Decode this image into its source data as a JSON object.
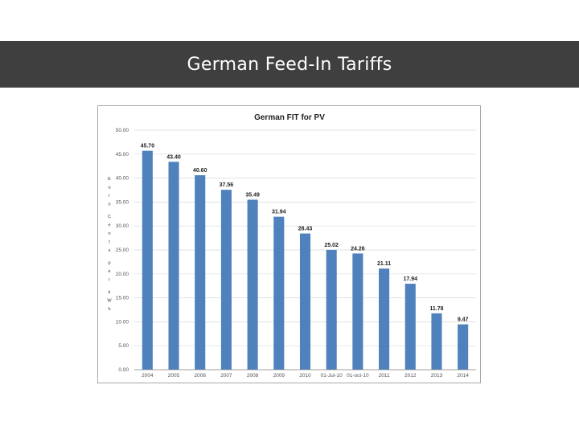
{
  "slide": {
    "title": "German Feed-In Tariffs"
  },
  "colors": {
    "banner": "#3f3f3f",
    "bar": "#4f81bd",
    "grid": "#d9d9d9"
  },
  "chart_data": {
    "type": "bar",
    "title": "German FIT for PV",
    "xlabel": "",
    "ylabel": "Euro Cents per kWh",
    "categories": [
      "2004",
      "2005",
      "2006",
      "2007",
      "2008",
      "2009",
      "2010",
      "01-Jul-10",
      "01-oct-10",
      "2011",
      "2012",
      "2013",
      "2014"
    ],
    "values": [
      45.7,
      43.4,
      40.6,
      37.56,
      35.49,
      31.94,
      28.43,
      25.02,
      24.26,
      21.11,
      17.94,
      11.78,
      9.47
    ],
    "data_labels": [
      "45.70",
      "43.40",
      "40.60",
      "37.56",
      "35.49",
      "31.94",
      "28.43",
      "25.02",
      "24.26",
      "21.11",
      "17.94",
      "11.78",
      "9.47"
    ],
    "yticks": [
      "0.00",
      "5.00",
      "10.00",
      "15.00",
      "20.00",
      "25.00",
      "30.00",
      "35.00",
      "40.00",
      "45.00",
      "50.00"
    ],
    "ylim": [
      0,
      50
    ],
    "grid": true,
    "legend": "none"
  }
}
